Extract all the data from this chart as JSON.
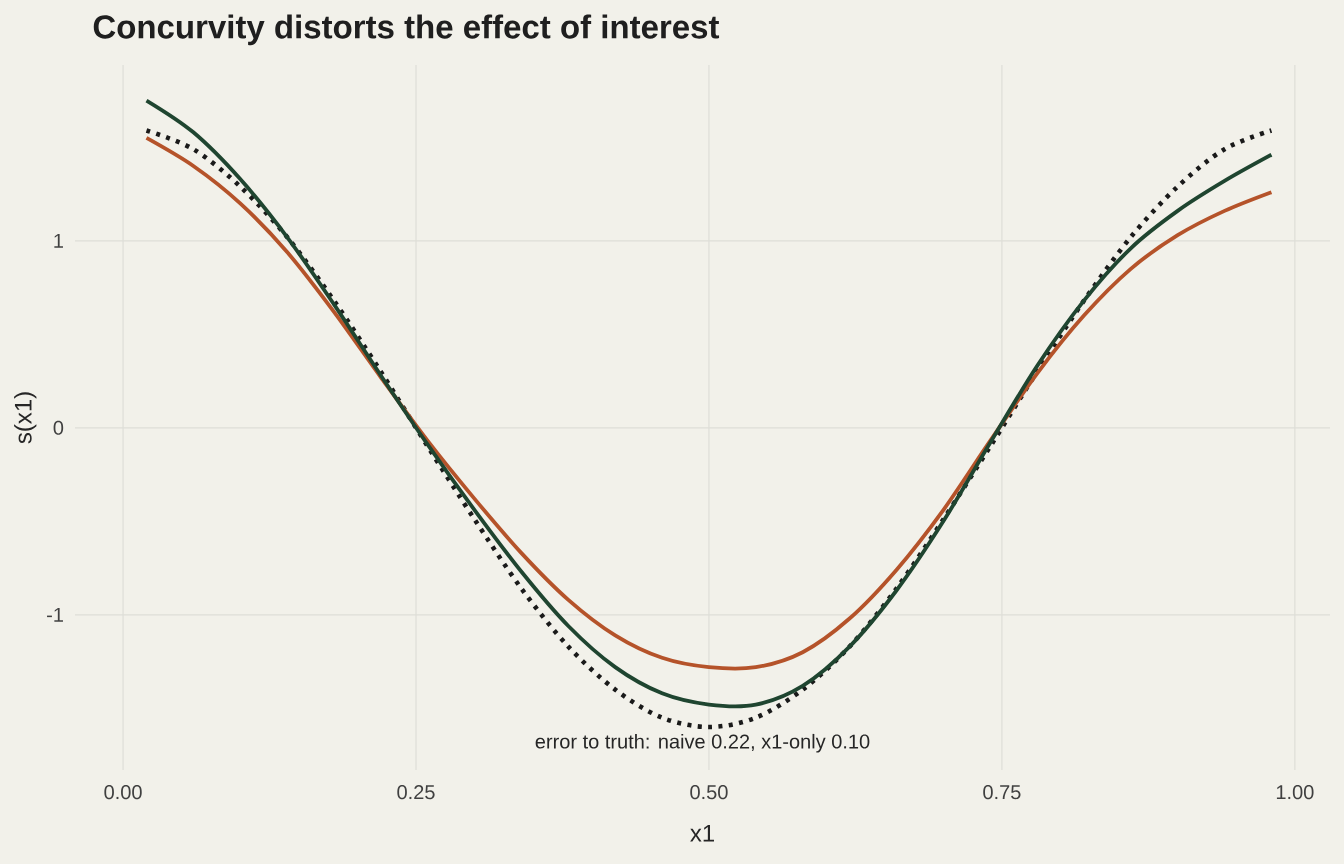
{
  "chart_data": {
    "type": "line",
    "title": "Concurvity distorts the effect of interest",
    "xlabel": "x1",
    "ylabel": "s(x1)",
    "x": [
      0.02,
      0.06,
      0.1,
      0.14,
      0.18,
      0.22,
      0.26,
      0.3,
      0.34,
      0.38,
      0.42,
      0.46,
      0.5,
      0.54,
      0.58,
      0.62,
      0.66,
      0.7,
      0.74,
      0.78,
      0.82,
      0.86,
      0.9,
      0.94,
      0.98
    ],
    "series": [
      {
        "color": "#1a1a1a",
        "line_style": "dotted",
        "values": [
          1.59,
          1.49,
          1.29,
          1.02,
          0.68,
          0.3,
          -0.1,
          -0.49,
          -0.86,
          -1.17,
          -1.4,
          -1.55,
          -1.6,
          -1.55,
          -1.4,
          -1.17,
          -0.86,
          -0.49,
          -0.1,
          0.3,
          0.68,
          1.02,
          1.29,
          1.49,
          1.59
        ]
      },
      {
        "color": "#b5532a",
        "line_style": "solid",
        "values": [
          1.55,
          1.4,
          1.2,
          0.94,
          0.62,
          0.27,
          -0.07,
          -0.38,
          -0.67,
          -0.92,
          -1.11,
          -1.23,
          -1.28,
          -1.28,
          -1.2,
          -1.02,
          -0.76,
          -0.44,
          -0.07,
          0.29,
          0.6,
          0.85,
          1.03,
          1.16,
          1.26
        ]
      },
      {
        "color": "#1f4530",
        "line_style": "solid",
        "values": [
          1.75,
          1.58,
          1.33,
          1.02,
          0.66,
          0.28,
          -0.09,
          -0.44,
          -0.77,
          -1.06,
          -1.28,
          -1.42,
          -1.48,
          -1.48,
          -1.38,
          -1.17,
          -0.87,
          -0.5,
          -0.08,
          0.33,
          0.68,
          0.96,
          1.16,
          1.32,
          1.46
        ]
      }
    ],
    "xlim": [
      -0.041,
      1.03
    ],
    "ylim": [
      -1.83,
      1.94
    ],
    "xticks": [
      {
        "value": 0,
        "label": "0.00"
      },
      {
        "value": 0.25,
        "label": "0.25"
      },
      {
        "value": 0.5,
        "label": "0.50"
      },
      {
        "value": 0.75,
        "label": "0.75"
      },
      {
        "value": 1,
        "label": "1.00"
      }
    ],
    "yticks": [
      -1,
      0,
      1
    ],
    "grid": true,
    "marker": "none",
    "annotations": [
      "error to truth: naive 0.22, x1-only 0.10"
    ]
  }
}
